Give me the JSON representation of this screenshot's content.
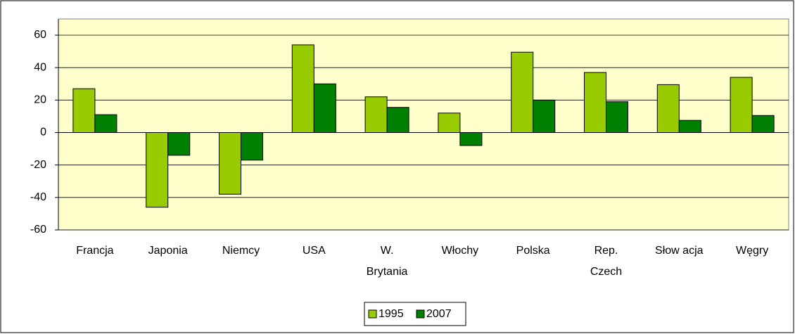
{
  "chart_data": {
    "type": "bar",
    "categories": [
      "Francja",
      "Japonia",
      "Niemcy",
      "USA",
      "W.\nBrytania",
      "Włochy",
      "Polska",
      "Rep.\nCzech",
      "Słow acja",
      "Węgry"
    ],
    "series": [
      {
        "name": "1995",
        "color": "#99cc00",
        "values": [
          27,
          -46,
          -38,
          54,
          22,
          12,
          49.5,
          37,
          29.5,
          34
        ]
      },
      {
        "name": "2007",
        "color": "#008000",
        "values": [
          11,
          -14,
          -17,
          30,
          15.5,
          -8,
          20,
          19,
          7.5,
          10.5
        ]
      }
    ],
    "ylim": [
      -60,
      60
    ],
    "yticks": [
      -60,
      -40,
      -20,
      0,
      20,
      40,
      60
    ],
    "grid": true,
    "legend": "bottom"
  }
}
